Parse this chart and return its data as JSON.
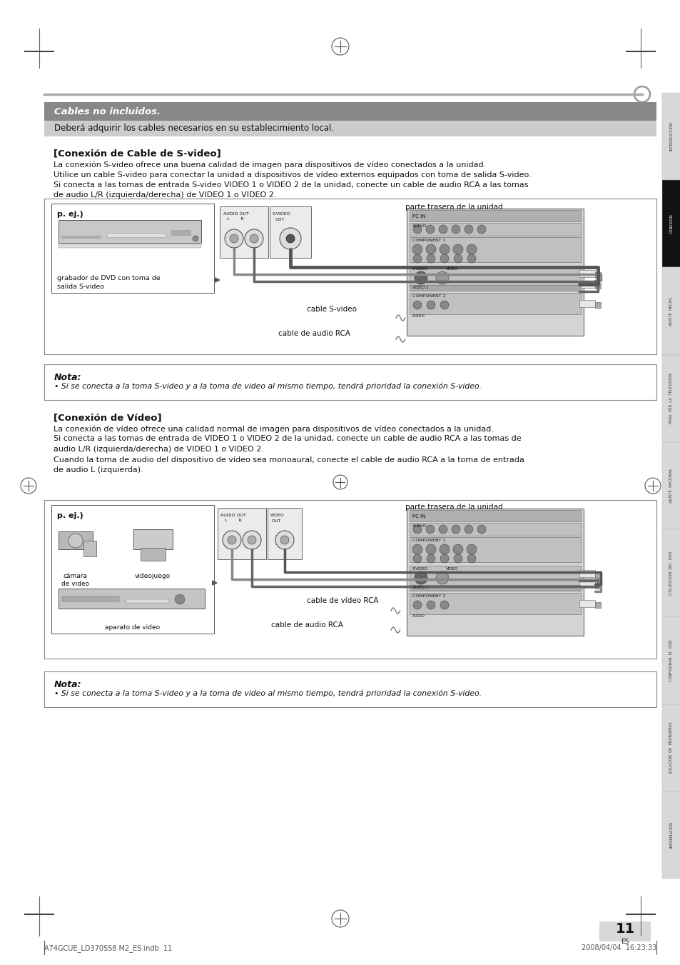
{
  "page_bg": "#ffffff",
  "sidebar_labels": [
    "INTRODUCCIÓN",
    "CONEXIÓN",
    "AJUSTE  INICIAL",
    "PARA  VER  LA  TELEVISIÓN",
    "AJUSTE  OPCIONAL",
    "UTILIZACIÓN  DEL  DVD",
    "CONFIGURAR  EL  DVD",
    "SOLUCIÓN  DE  PROBLEMAS",
    "INFORMACIÓN"
  ],
  "sidebar_active": 1,
  "cables_banner_text": "Cables no incluidos.",
  "cables_sub_text": "Deberá adquirir los cables necesarios en su establecimiento local.",
  "section1_title": "[Conexión de Cable de S-video]",
  "section1_lines": [
    "La conexión S-video ofrece una buena calidad de imagen para dispositivos de vídeo conectados a la unidad.",
    "Utilice un cable S-video para conectar la unidad a dispositivos de vídeo externos equipados con toma de salida S-video.",
    "Si conecta a las tomas de entrada S-video VIDEO 1 o VIDEO 2 de la unidad, conecte un cable de audio RCA a las tomas",
    "de audio L/R (izquierda/derecha) de VIDEO 1 o VIDEO 2."
  ],
  "section2_title": "[Conexión de Vídeo]",
  "section2_lines": [
    "La conexión de vídeo ofrece una calidad normal de imagen para dispositivos de vídeo conectados a la unidad.",
    "Si conecta a las tomas de entrada de VIDEO 1 o VIDEO 2 de la unidad, conecte un cable de audio RCA a las tomas de",
    "audio L/R (izquierda/derecha) de VIDEO 1 o VIDEO 2.",
    "Cuando la toma de audio del dispositivo de vídeo sea monoaural, conecte el cable de audio RCA a la toma de entrada",
    "de audio L (izquierda)."
  ],
  "nota_title": "Nota:",
  "nota_body": "• Si se conecta a la toma S-video y a la toma de video al mismo tiempo, tendrá prioridad la conexión S-video.",
  "page_number": "11",
  "page_lang": "ES",
  "footer_left": "A74GCUE_LD370SS8 M2_ES.indb  11",
  "footer_right": "2008/04/04  16:23:33"
}
